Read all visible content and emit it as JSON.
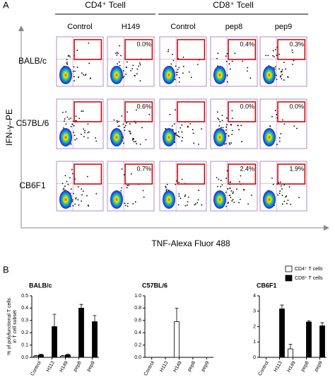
{
  "figure": {
    "panel_a": "A",
    "panel_b": "B"
  },
  "flow": {
    "groups": [
      {
        "label": "CD4⁺ Tcell",
        "span": [
          0,
          1
        ]
      },
      {
        "label": "CD8⁺ Tcell",
        "span": [
          2,
          4
        ]
      }
    ],
    "columns": [
      "Control",
      "H149",
      "Control",
      "pep8",
      "pep9"
    ],
    "rows": [
      {
        "label": "BALB/c",
        "percents": [
          null,
          "0.0%",
          null,
          "0.4%",
          "0.3%"
        ]
      },
      {
        "label": "C57BL/6",
        "percents": [
          null,
          "0.6%",
          null,
          "0.0%",
          "0.0%"
        ]
      },
      {
        "label": "CB6F1",
        "percents": [
          null,
          "0.7%",
          null,
          "2.4%",
          "1.9%"
        ]
      }
    ],
    "y_label": "IFN-γ–PE",
    "x_label": "TNF-Alexa Fluor 488"
  },
  "chart_data": [
    {
      "type": "bar",
      "title": "BALB/c",
      "y_label": "% of polyfunctional T cells in T cell subset",
      "categories": [
        "Control",
        "H113",
        "H149",
        "pep8",
        "pep9"
      ],
      "series": [
        {
          "name": "CD4⁺ T cells",
          "color": "#ffffff",
          "values": [
            0.01,
            0,
            0.01,
            0,
            0
          ],
          "errors": [
            0.005,
            0,
            0.005,
            0,
            0
          ]
        },
        {
          "name": "CD8⁺ T cells",
          "color": "#000000",
          "values": [
            0.02,
            0.25,
            0.02,
            0.4,
            0.29
          ],
          "errors": [
            0.005,
            0.1,
            0.005,
            0.03,
            0.05
          ]
        }
      ],
      "ylim": [
        0,
        0.5
      ],
      "yticks": [
        {
          "value": 0,
          "label": "0.0"
        },
        {
          "value": 0.1,
          "label": "0.1"
        },
        {
          "value": 0.2,
          "label": "0.2"
        },
        {
          "value": 0.3,
          "label": "0.3"
        },
        {
          "value": 0.4,
          "label": "0.4"
        },
        {
          "value": 0.5,
          "label": "0.5"
        }
      ]
    },
    {
      "type": "bar",
      "title": "C57BL/6",
      "categories": [
        "Control",
        "H113",
        "H149",
        "pep8",
        "pep9"
      ],
      "series": [
        {
          "name": "CD4⁺ T cells",
          "color": "#ffffff",
          "values": [
            0,
            0,
            0.58,
            0,
            0
          ],
          "errors": [
            0,
            0,
            0.22,
            0,
            0
          ]
        },
        {
          "name": "CD8⁺ T cells",
          "color": "#000000",
          "values": [
            0,
            0,
            0,
            0,
            0
          ],
          "errors": [
            0,
            0,
            0,
            0,
            0
          ]
        }
      ],
      "ylim": [
        0,
        1
      ],
      "yticks": [
        {
          "value": 0,
          "label": "0.0"
        },
        {
          "value": 0.2,
          "label": "0.2"
        },
        {
          "value": 0.4,
          "label": "0.4"
        },
        {
          "value": 0.6,
          "label": "0.6"
        },
        {
          "value": 0.8,
          "label": "0.8"
        },
        {
          "value": 1,
          "label": "1.0"
        }
      ]
    },
    {
      "type": "bar",
      "title": "CB6F1",
      "legend": "top-right",
      "categories": [
        "Control",
        "H113",
        "H149",
        "pep8",
        "pep9"
      ],
      "series": [
        {
          "name": "CD4⁺ T cells",
          "color": "#ffffff",
          "values": [
            0,
            0,
            0.55,
            0,
            0
          ],
          "errors": [
            0,
            0,
            0.3,
            0,
            0
          ]
        },
        {
          "name": "CD8⁺ T cells",
          "color": "#000000",
          "values": [
            0,
            3.15,
            0,
            2.3,
            2.05
          ],
          "errors": [
            0,
            0.25,
            0,
            0.08,
            0.2
          ]
        }
      ],
      "ylim": [
        0,
        4
      ],
      "yticks": [
        0,
        1,
        2,
        3,
        4
      ]
    }
  ]
}
